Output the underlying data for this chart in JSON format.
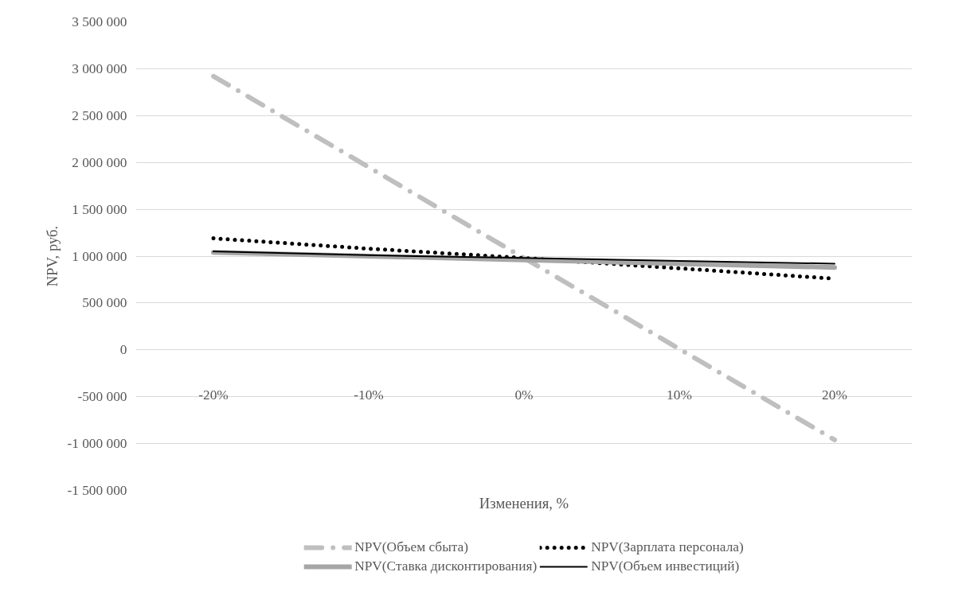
{
  "chart_data": {
    "type": "line",
    "xlabel": "Изменения, %",
    "ylabel": "NPV, руб.",
    "categories": [
      "-20%",
      "-10%",
      "0%",
      "10%",
      "20%"
    ],
    "series": [
      {
        "name": "NPV(Объем сбыта)",
        "color": "#bfbfbf",
        "line_style": "dashdot",
        "values": [
          2920000,
          1950000,
          980000,
          10000,
          -960000
        ]
      },
      {
        "name": "NPV(Зарплата персонала)",
        "color": "#000000",
        "line_style": "dotted",
        "values": [
          1190000,
          1080000,
          980000,
          870000,
          760000
        ]
      },
      {
        "name": "NPV(Ставка дисконтирования)",
        "color": "#a6a6a6",
        "line_style": "solid",
        "values": [
          1040000,
          1000000,
          960000,
          920000,
          880000
        ]
      },
      {
        "name": "NPV(Объем инвестиций)",
        "color": "#000000",
        "line_style": "solid",
        "values": [
          1050000,
          1010000,
          980000,
          950000,
          920000
        ]
      }
    ],
    "ylim": [
      -1500000,
      3500000
    ],
    "yticks": [
      {
        "value": -1500000,
        "label": "-1 500 000"
      },
      {
        "value": -1000000,
        "label": "-1 000 000"
      },
      {
        "value": -500000,
        "label": "-500 000"
      },
      0,
      {
        "value": 500000,
        "label": "500 000"
      },
      {
        "value": 1000000,
        "label": "1 000 000"
      },
      {
        "value": 1500000,
        "label": "1 500 000"
      },
      {
        "value": 2000000,
        "label": "2 000 000"
      },
      {
        "value": 2500000,
        "label": "2 500 000"
      },
      {
        "value": 3000000,
        "label": "3 000 000"
      },
      {
        "value": 3500000,
        "label": "3 500 000"
      }
    ],
    "grid": "y",
    "legend": "bottom",
    "marker": "none"
  }
}
